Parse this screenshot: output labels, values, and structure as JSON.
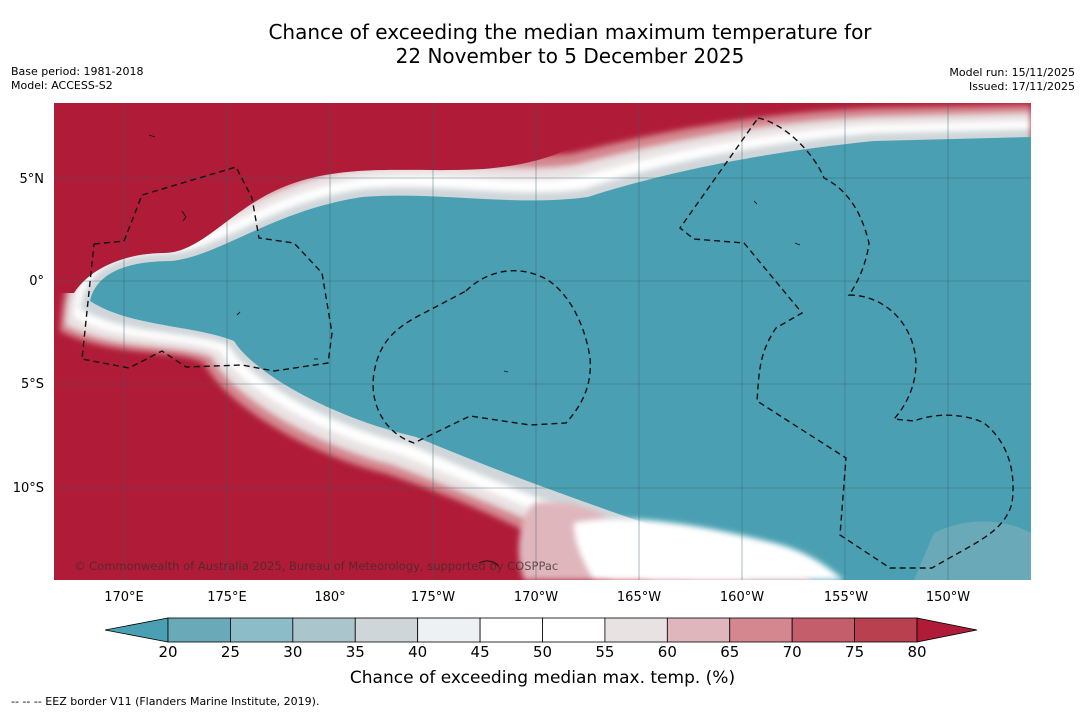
{
  "header": {
    "title_line1": "Chance of exceeding the median maximum temperature for",
    "title_line2": "22 November to 5 December 2025",
    "base_period": "Base period: 1981-2018",
    "model": "Model: ACCESS-S2",
    "model_run": "Model run: 15/11/2025",
    "issued": "Issued: 17/11/2025"
  },
  "map": {
    "lat_labels": [
      "5°N",
      "0°",
      "5°S",
      "10°S"
    ],
    "lon_labels": [
      "170°E",
      "175°E",
      "180°",
      "175°W",
      "170°W",
      "165°W",
      "160°W",
      "155°W",
      "150°W"
    ],
    "copyright": "© Commonwealth of Australia 2025, Bureau of Meteorology, supported by COSPPac"
  },
  "colorbar": {
    "ticks": [
      "20",
      "25",
      "30",
      "35",
      "40",
      "45",
      "50",
      "55",
      "60",
      "65",
      "70",
      "75",
      "80"
    ],
    "colors": [
      "#4aa0b2",
      "#6aaab8",
      "#8bbcc7",
      "#aac6cc",
      "#cfd6d9",
      "#edf1f3",
      "#ffffff",
      "#ffffff",
      "#e9e2e3",
      "#dfb6bb",
      "#d4878f",
      "#c45e6a",
      "#b8404f",
      "#b01c38"
    ],
    "label": "Chance of exceeding median max. temp. (%)"
  },
  "footer": {
    "legend": "--  --  -- EEZ border V11 (Flanders Marine Institute, 2019)."
  }
}
